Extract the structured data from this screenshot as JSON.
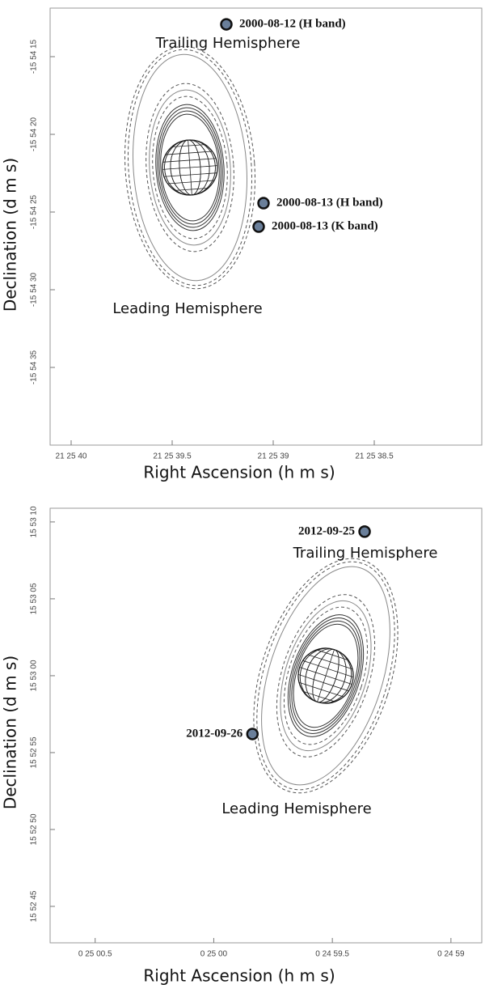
{
  "chart_data": [
    {
      "type": "scatter",
      "x_label": "Right Ascension (h m s)",
      "y_label": "Declination (d m s)",
      "xlim": [
        77140.104,
        77137.968
      ],
      "ylim": [
        -57280,
        -57251.875
      ],
      "xticks": [
        {
          "value": 77140,
          "label": "21 25 40"
        },
        {
          "value": 77139.5,
          "label": "21 25 39.5"
        },
        {
          "value": 77139,
          "label": "21 25 39"
        },
        {
          "value": 77138.5,
          "label": "21 25 38.5"
        }
      ],
      "yticks": [
        {
          "value": -57255,
          "label": "-15 54 15"
        },
        {
          "value": -57260,
          "label": "-15 54 20"
        },
        {
          "value": -57265,
          "label": "-15 54 25"
        },
        {
          "value": -57270,
          "label": "-15 54 30"
        },
        {
          "value": -57275,
          "label": "-15 54 35"
        }
      ],
      "series": [
        {
          "name": "2000-08-12  (H band)",
          "color": "#6a7f9a",
          "x": [
            77139.232
          ],
          "values": [
            -57252.92
          ]
        },
        {
          "name": "2000-08-13 (H band)",
          "color": "#6a7f9a",
          "x": [
            77139.048
          ],
          "values": [
            -57264.43
          ]
        },
        {
          "name": "2000-08-13 (K band)",
          "color": "#6a7f9a",
          "x": [
            77139.072
          ],
          "values": [
            -57265.94
          ]
        }
      ],
      "annotations": [
        "Trailing Hemisphere",
        "Leading Hemisphere"
      ]
    },
    {
      "type": "scatter",
      "x_label": "Right Ascension (h m s)",
      "y_label": "Declination (d m s)",
      "xlim": [
        1500.69,
        1498.87
      ],
      "ylim": [
        57162.63,
        57190.89
      ],
      "xticks": [
        {
          "value": 1500.5,
          "label": "0 25 00.5"
        },
        {
          "value": 1500,
          "label": "0 25 00"
        },
        {
          "value": 1499.5,
          "label": "0 24 59.5"
        },
        {
          "value": 1499,
          "label": "0 24 59"
        }
      ],
      "yticks": [
        {
          "value": 57190,
          "label": "15 53 10"
        },
        {
          "value": 57185,
          "label": "15 53 05"
        },
        {
          "value": 57180,
          "label": "15 53 00"
        },
        {
          "value": 57175,
          "label": "15 52 55"
        },
        {
          "value": 57170,
          "label": "15 52 50"
        },
        {
          "value": 57165,
          "label": "15 52 45"
        }
      ],
      "series": [
        {
          "name": "2012-09-25",
          "color": "#6a7f9a",
          "x": [
            1499.364
          ],
          "values": [
            57189.37
          ]
        },
        {
          "name": "2012-09-26",
          "color": "#6a7f9a",
          "x": [
            1499.837
          ],
          "values": [
            57176.21
          ]
        }
      ],
      "annotations": [
        "Trailing Hemisphere",
        "Leading Hemisphere"
      ]
    }
  ]
}
